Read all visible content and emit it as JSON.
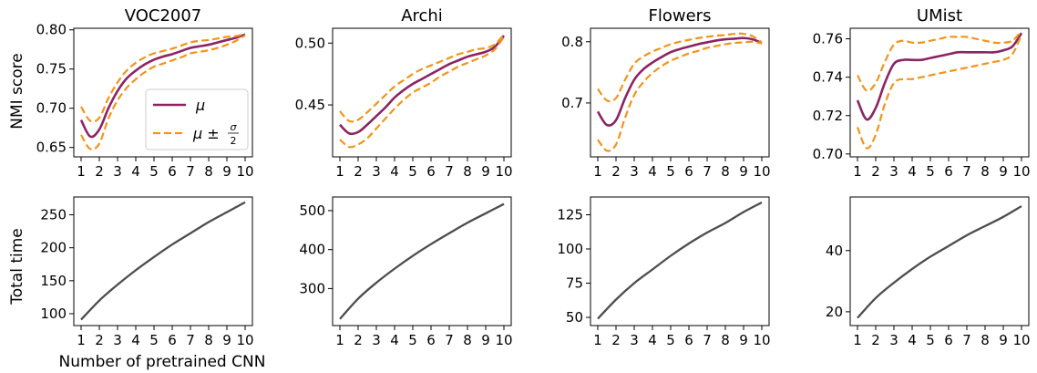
{
  "figure": {
    "shared_xlabel": "Number of pretrained CNN",
    "row_ylabels": [
      "NMI score",
      "Total time"
    ],
    "legend": {
      "mu": "μ",
      "band_prefix": "μ ±",
      "band_num": "σ",
      "band_den": "2"
    },
    "colors": {
      "mean": "#8b2463",
      "band": "#f2941a",
      "time": "#4d4d4d"
    }
  },
  "chart_data": [
    {
      "type": "line",
      "title": "VOC2007",
      "ylabel": "NMI score",
      "xlabel": "",
      "x": [
        1,
        1.5,
        2,
        2.5,
        3,
        3.5,
        4,
        4.5,
        5,
        5.5,
        6,
        6.5,
        7,
        7.5,
        8,
        8.5,
        9,
        9.5,
        10
      ],
      "xticks": [
        "1",
        "2",
        "3",
        "4",
        "5",
        "6",
        "7",
        "8",
        "9",
        "10"
      ],
      "xlim": [
        0.6,
        10.4
      ],
      "ylim": [
        0.638,
        0.802
      ],
      "yticks": [
        "0.65",
        "0.70",
        "0.75",
        "0.80"
      ],
      "series": [
        {
          "name": "μ",
          "style": "solid",
          "values": [
            0.685,
            0.664,
            0.673,
            0.7,
            0.722,
            0.738,
            0.748,
            0.756,
            0.762,
            0.766,
            0.769,
            0.773,
            0.777,
            0.779,
            0.781,
            0.784,
            0.787,
            0.79,
            0.794
          ]
        },
        {
          "name": "μ ± σ/2",
          "style": "dashed",
          "values": [
            0.702,
            0.684,
            0.688,
            0.713,
            0.733,
            0.748,
            0.758,
            0.765,
            0.77,
            0.773,
            0.776,
            0.78,
            0.784,
            0.786,
            0.787,
            0.789,
            0.791,
            0.792,
            0.795
          ]
        },
        {
          "name": "",
          "style": "dashed",
          "values": [
            0.666,
            0.648,
            0.655,
            0.687,
            0.71,
            0.726,
            0.737,
            0.746,
            0.753,
            0.757,
            0.761,
            0.765,
            0.77,
            0.772,
            0.774,
            0.777,
            0.781,
            0.786,
            0.793
          ]
        }
      ],
      "legend_position": "lower-right",
      "grid": false
    },
    {
      "type": "line",
      "title": "Archi",
      "ylabel": "",
      "xlabel": "",
      "x": [
        1,
        1.5,
        2,
        2.5,
        3,
        3.5,
        4,
        4.5,
        5,
        5.5,
        6,
        6.5,
        7,
        7.5,
        8,
        8.5,
        9,
        9.5,
        10
      ],
      "xticks": [
        "1",
        "2",
        "3",
        "4",
        "5",
        "6",
        "7",
        "8",
        "9",
        "10"
      ],
      "xlim": [
        0.6,
        10.4
      ],
      "ylim": [
        0.408,
        0.512
      ],
      "yticks": [
        "0.45",
        "0.50"
      ],
      "series": [
        {
          "style": "solid",
          "values": [
            0.434,
            0.427,
            0.428,
            0.434,
            0.441,
            0.448,
            0.456,
            0.462,
            0.467,
            0.471,
            0.475,
            0.479,
            0.483,
            0.486,
            0.489,
            0.491,
            0.493,
            0.497,
            0.506
          ]
        },
        {
          "style": "dashed",
          "values": [
            0.445,
            0.437,
            0.438,
            0.444,
            0.451,
            0.458,
            0.465,
            0.47,
            0.475,
            0.479,
            0.482,
            0.485,
            0.488,
            0.491,
            0.493,
            0.495,
            0.496,
            0.499,
            0.507
          ]
        },
        {
          "style": "dashed",
          "values": [
            0.422,
            0.416,
            0.418,
            0.423,
            0.431,
            0.439,
            0.447,
            0.454,
            0.46,
            0.464,
            0.468,
            0.473,
            0.477,
            0.481,
            0.484,
            0.487,
            0.49,
            0.495,
            0.505
          ]
        }
      ],
      "grid": false
    },
    {
      "type": "line",
      "title": "Flowers",
      "ylabel": "",
      "xlabel": "",
      "x": [
        1,
        1.5,
        2,
        2.5,
        3,
        3.5,
        4,
        4.5,
        5,
        5.5,
        6,
        6.5,
        7,
        7.5,
        8,
        8.5,
        9,
        9.5,
        10
      ],
      "xticks": [
        "1",
        "2",
        "3",
        "4",
        "5",
        "6",
        "7",
        "8",
        "9",
        "10"
      ],
      "xlim": [
        0.6,
        10.4
      ],
      "ylim": [
        0.612,
        0.822
      ],
      "yticks": [
        "0.7",
        "0.8"
      ],
      "series": [
        {
          "style": "solid",
          "values": [
            0.686,
            0.664,
            0.672,
            0.708,
            0.738,
            0.755,
            0.766,
            0.775,
            0.783,
            0.788,
            0.792,
            0.796,
            0.799,
            0.802,
            0.804,
            0.805,
            0.806,
            0.804,
            0.798
          ]
        },
        {
          "style": "dashed",
          "values": [
            0.723,
            0.704,
            0.708,
            0.738,
            0.764,
            0.776,
            0.784,
            0.79,
            0.796,
            0.8,
            0.803,
            0.806,
            0.808,
            0.81,
            0.811,
            0.813,
            0.813,
            0.809,
            0.799
          ]
        },
        {
          "style": "dashed",
          "values": [
            0.64,
            0.622,
            0.632,
            0.676,
            0.713,
            0.734,
            0.749,
            0.76,
            0.769,
            0.775,
            0.781,
            0.785,
            0.79,
            0.793,
            0.796,
            0.798,
            0.799,
            0.8,
            0.797
          ]
        }
      ],
      "grid": false
    },
    {
      "type": "line",
      "title": "UMist",
      "ylabel": "",
      "xlabel": "",
      "x": [
        1,
        1.5,
        2,
        2.5,
        3,
        3.5,
        4,
        4.5,
        5,
        5.5,
        6,
        6.5,
        7,
        7.5,
        8,
        8.5,
        9,
        9.5,
        10
      ],
      "xticks": [
        "1",
        "2",
        "3",
        "4",
        "5",
        "6",
        "7",
        "8",
        "9",
        "10"
      ],
      "xlim": [
        0.6,
        10.4
      ],
      "ylim": [
        0.6985,
        0.7655
      ],
      "yticks": [
        "0.70",
        "0.72",
        "0.74",
        "0.76"
      ],
      "series": [
        {
          "style": "solid",
          "values": [
            0.728,
            0.718,
            0.724,
            0.737,
            0.747,
            0.749,
            0.749,
            0.749,
            0.75,
            0.751,
            0.752,
            0.753,
            0.753,
            0.753,
            0.753,
            0.753,
            0.754,
            0.756,
            0.763
          ]
        },
        {
          "style": "dashed",
          "values": [
            0.741,
            0.733,
            0.737,
            0.748,
            0.757,
            0.759,
            0.758,
            0.758,
            0.759,
            0.76,
            0.761,
            0.761,
            0.761,
            0.76,
            0.759,
            0.758,
            0.758,
            0.759,
            0.764
          ]
        },
        {
          "style": "dashed",
          "values": [
            0.714,
            0.703,
            0.71,
            0.726,
            0.737,
            0.739,
            0.739,
            0.74,
            0.741,
            0.742,
            0.743,
            0.744,
            0.745,
            0.746,
            0.747,
            0.748,
            0.749,
            0.752,
            0.762
          ]
        }
      ],
      "grid": false
    },
    {
      "type": "line",
      "title": "",
      "ylabel": "Total time",
      "xlabel": "Number of pretrained CNN",
      "x": [
        1,
        2,
        3,
        4,
        5,
        6,
        7,
        8,
        9,
        10
      ],
      "xticks": [
        "1",
        "2",
        "3",
        "4",
        "5",
        "6",
        "7",
        "8",
        "9",
        "10"
      ],
      "xlim": [
        0.6,
        10.4
      ],
      "ylim": [
        82,
        277
      ],
      "yticks": [
        "100",
        "150",
        "200",
        "250"
      ],
      "series": [
        {
          "style": "solid",
          "values": [
            91,
            120,
            144,
            166,
            186,
            205,
            222,
            239,
            254,
            269
          ]
        }
      ],
      "grid": false
    },
    {
      "type": "line",
      "title": "",
      "ylabel": "",
      "xlabel": "",
      "x": [
        1,
        2,
        3,
        4,
        5,
        6,
        7,
        8,
        9,
        10
      ],
      "xticks": [
        "1",
        "2",
        "3",
        "4",
        "5",
        "6",
        "7",
        "8",
        "9",
        "10"
      ],
      "xlim": [
        0.6,
        10.4
      ],
      "ylim": [
        205,
        535
      ],
      "yticks": [
        "300",
        "400",
        "500"
      ],
      "series": [
        {
          "style": "solid",
          "values": [
            222,
            274,
            315,
            351,
            384,
            414,
            442,
            469,
            493,
            517
          ]
        }
      ],
      "grid": false
    },
    {
      "type": "line",
      "title": "",
      "ylabel": "",
      "xlabel": "",
      "x": [
        1,
        2,
        3,
        4,
        5,
        6,
        7,
        8,
        9,
        10
      ],
      "xticks": [
        "1",
        "2",
        "3",
        "4",
        "5",
        "6",
        "7",
        "8",
        "9",
        "10"
      ],
      "xlim": [
        0.6,
        10.4
      ],
      "ylim": [
        44,
        138
      ],
      "yticks": [
        "50",
        "75",
        "100",
        "125"
      ],
      "series": [
        {
          "style": "solid",
          "values": [
            49,
            63,
            75,
            85,
            95,
            104,
            112,
            119,
            127,
            134
          ]
        }
      ],
      "grid": false
    },
    {
      "type": "line",
      "title": "",
      "ylabel": "",
      "xlabel": "",
      "x": [
        1,
        2,
        3,
        4,
        5,
        6,
        7,
        8,
        9,
        10
      ],
      "xticks": [
        "1",
        "2",
        "3",
        "4",
        "5",
        "6",
        "7",
        "8",
        "9",
        "10"
      ],
      "xlim": [
        0.6,
        10.4
      ],
      "ylim": [
        15.5,
        57.5
      ],
      "yticks": [
        "20",
        "40"
      ],
      "series": [
        {
          "style": "solid",
          "values": [
            18,
            24.5,
            29.5,
            34,
            38,
            41.5,
            45,
            48,
            51,
            54.5
          ]
        }
      ],
      "grid": false
    }
  ]
}
